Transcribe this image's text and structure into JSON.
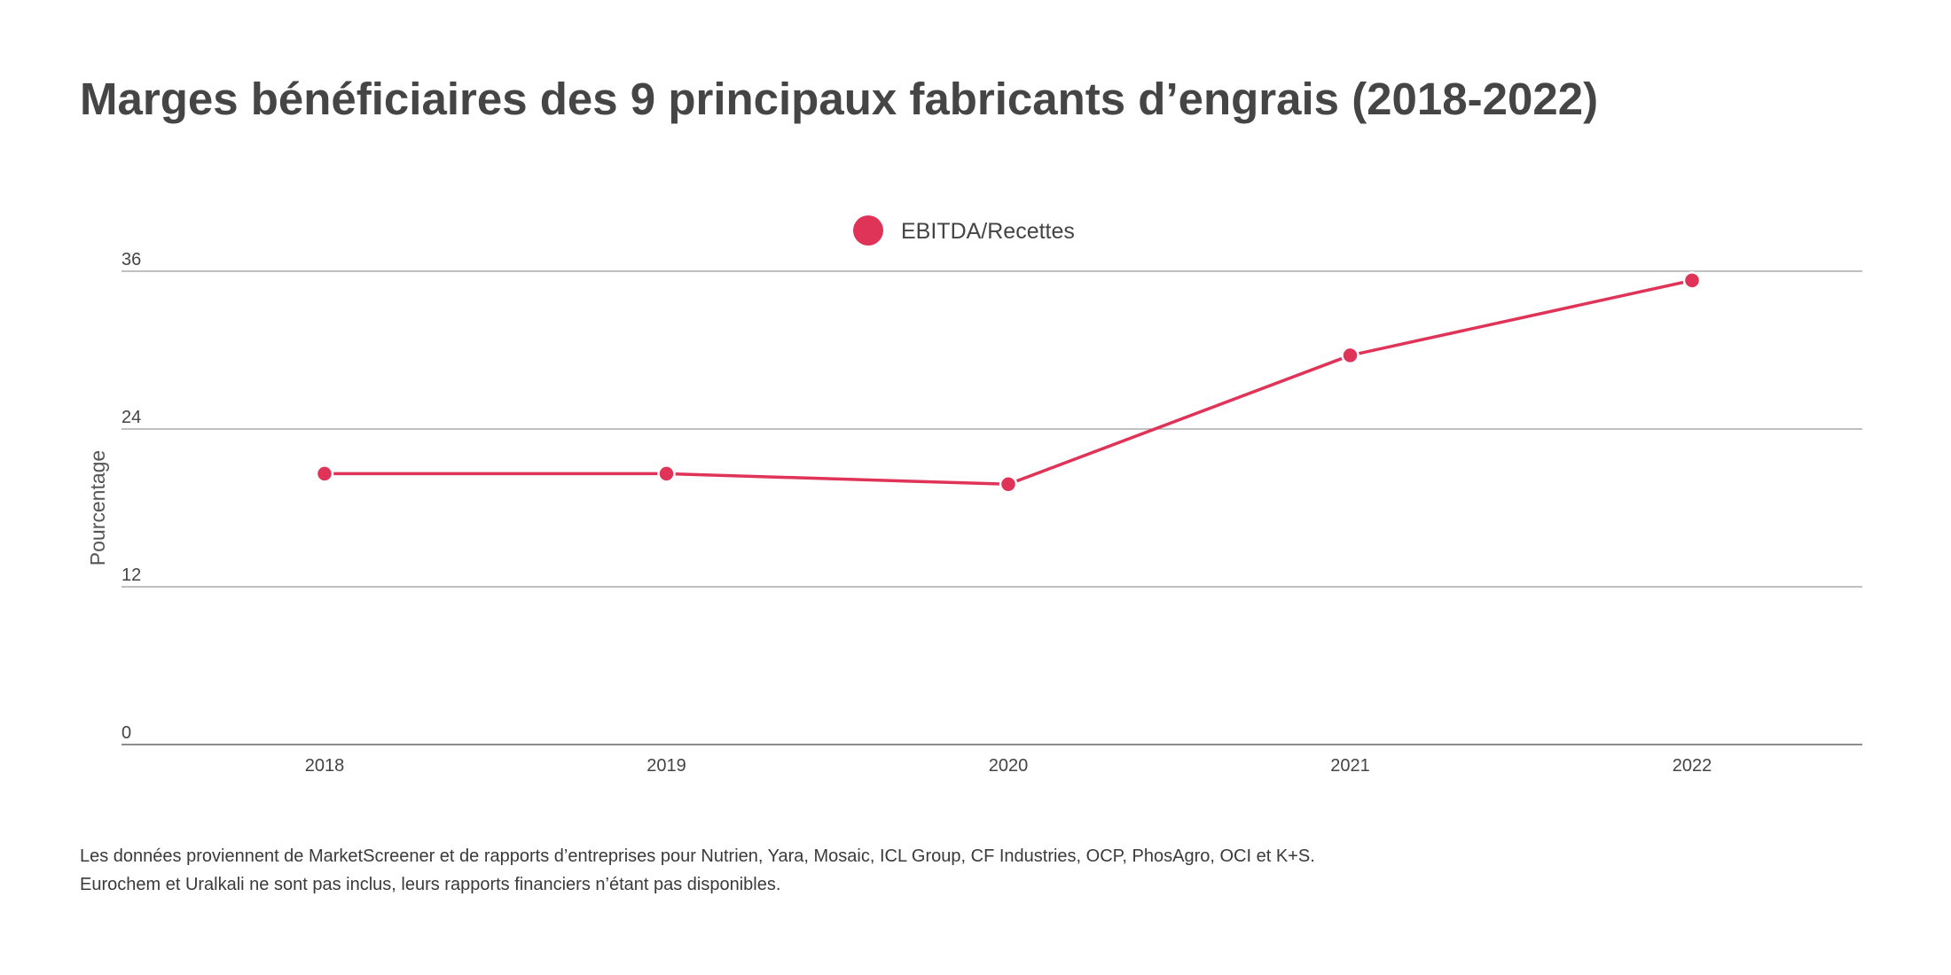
{
  "title": "Marges bénéficiaires des 9 principaux fabricants d’engrais (2018-2022)",
  "footnote": "Les données proviennent de MarketScreener et de rapports d’entreprises pour Nutrien, Yara, Mosaic, ICL Group, CF Industries, OCP, PhosAgro, OCI et K+S. Eurochem et Uralkali ne sont pas inclus, leurs rapports financiers n’étant pas disponibles.",
  "colors": {
    "series": "#e03358",
    "grid": "#9a9a9a",
    "text": "#444444"
  },
  "chart_data": {
    "type": "line",
    "title": "Marges bénéficiaires des 9 principaux fabricants d’engrais (2018-2022)",
    "xlabel": "",
    "ylabel": "Pourcentage",
    "categories": [
      "2018",
      "2019",
      "2020",
      "2021",
      "2022"
    ],
    "series": [
      {
        "name": "EBITDA/Recettes",
        "values": [
          20.6,
          20.6,
          19.8,
          29.6,
          35.3
        ]
      }
    ],
    "ylim": [
      0,
      36
    ],
    "yticks": [
      0,
      12,
      24,
      36
    ],
    "grid": true,
    "legend": "top-center",
    "markers": true
  }
}
